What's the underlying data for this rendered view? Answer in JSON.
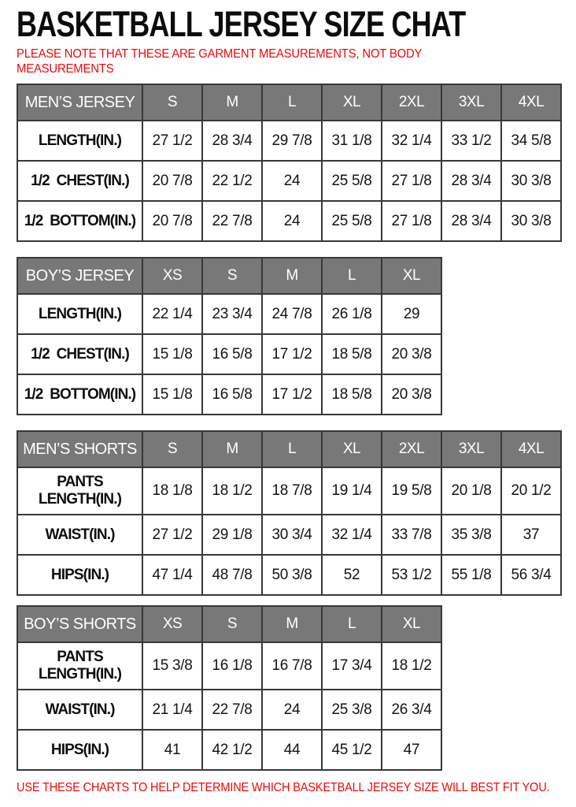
{
  "page": {
    "title": "BASKETBALL JERSEY SIZE CHAT",
    "note_line1": "PLEASE NOTE THAT THESE ARE GARMENT MEASUREMENTS, NOT BODY",
    "note_line2": "MEASUREMENTS",
    "footer": "USE THESE CHARTS TO HELP DETERMINE WHICH BASKETBALL JERSEY SIZE WILL BEST FIT YOU."
  },
  "colors": {
    "header_bg": "#787878",
    "header_text": "#ffffff",
    "table_border": "#383838",
    "accent_red": "#f70505",
    "text": "#141414"
  },
  "tables": [
    {
      "name": "MEN’S JERSEY",
      "sizes": [
        "S",
        "M",
        "L",
        "XL",
        "2XL",
        "3XL",
        "4XL"
      ],
      "rows": [
        {
          "label": "LENGTH(IN.)",
          "values": [
            "27 1/2",
            "28 3/4",
            "29 7/8",
            "31 1/8",
            "32 1/4",
            "33 1/2",
            "34 5/8"
          ]
        },
        {
          "label": "1/2  CHEST(IN.)",
          "values": [
            "20 7/8",
            "22 1/2",
            "24",
            "25 5/8",
            "27 1/8",
            "28 3/4",
            "30 3/8"
          ]
        },
        {
          "label": "1/2  BOTTOM(IN.)",
          "values": [
            "20 7/8",
            "22 7/8",
            "24",
            "25 5/8",
            "27 1/8",
            "28 3/4",
            "30 3/8"
          ]
        }
      ]
    },
    {
      "name": "BOY’S JERSEY",
      "sizes": [
        "XS",
        "S",
        "M",
        "L",
        "XL"
      ],
      "rows": [
        {
          "label": "LENGTH(IN.)",
          "values": [
            "22 1/4",
            "23 3/4",
            "24 7/8",
            "26 1/8",
            "29"
          ]
        },
        {
          "label": "1/2  CHEST(IN.)",
          "values": [
            "15 1/8",
            "16 5/8",
            "17 1/2",
            "18 5/8",
            "20 3/8"
          ]
        },
        {
          "label": "1/2  BOTTOM(IN.)",
          "values": [
            "15 1/8",
            "16 5/8",
            "17 1/2",
            "18 5/8",
            "20 3/8"
          ]
        }
      ]
    },
    {
      "name": "MEN’S SHORTS",
      "sizes": [
        "S",
        "M",
        "L",
        "XL",
        "2XL",
        "3XL",
        "4XL"
      ],
      "rows": [
        {
          "label": "PANTS\nLENGTH(IN.)",
          "values": [
            "18 1/8",
            "18 1/2",
            "18 7/8",
            "19 1/4",
            "19 5/8",
            "20 1/8",
            "20 1/2"
          ]
        },
        {
          "label": "WAIST(IN.)",
          "values": [
            "27 1/2",
            "29 1/8",
            "30 3/4",
            "32 1/4",
            "33 7/8",
            "35 3/8",
            "37"
          ]
        },
        {
          "label": "HIPS(IN.)",
          "values": [
            "47 1/4",
            "48 7/8",
            "50 3/8",
            "52",
            "53 1/2",
            "55 1/8",
            "56 3/4"
          ]
        }
      ]
    },
    {
      "name": "BOY’S SHORTS",
      "sizes": [
        "XS",
        "S",
        "M",
        "L",
        "XL"
      ],
      "rows": [
        {
          "label": "PANTS\nLENGTH(IN.)",
          "values": [
            "15 3/8",
            "16 1/8",
            "16 7/8",
            "17 3/4",
            "18 1/2"
          ]
        },
        {
          "label": "WAIST(IN.)",
          "values": [
            "21 1/4",
            "22 7/8",
            "24",
            "25 3/8",
            "26 3/4"
          ]
        },
        {
          "label": "HIPS(IN.)",
          "values": [
            "41",
            "42 1/2",
            "44",
            "45 1/2",
            "47"
          ]
        }
      ]
    }
  ]
}
